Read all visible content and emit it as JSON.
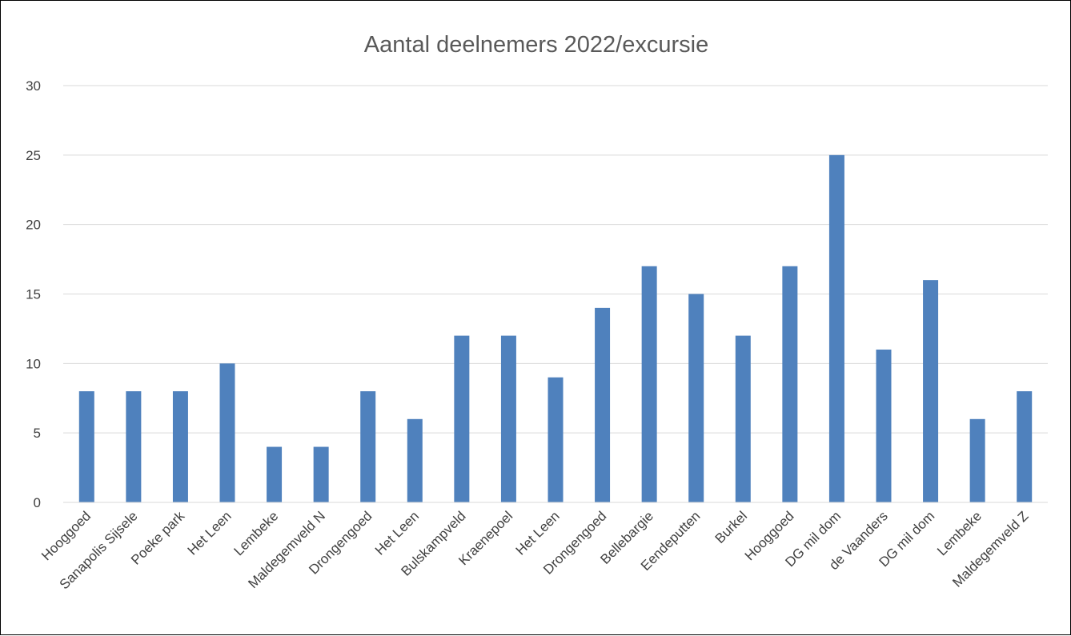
{
  "chart_data": {
    "type": "bar",
    "title": "Aantal deelnemers 2022/excursie",
    "xlabel": "",
    "ylabel": "",
    "ylim": [
      0,
      30
    ],
    "yticks": [
      "0",
      "5",
      "10",
      "15",
      "20",
      "25",
      "30"
    ],
    "grid": true,
    "legend": "none",
    "bar_color": "#4F81BD",
    "categories": [
      "Hooggoed",
      "Sanapolis Sijsele",
      "Poeke park",
      "Het Leen",
      "Lembeke",
      "Maldegemveld N",
      "Drongengoed",
      "Het Leen",
      "Bulskampveld",
      "Kraenepoel",
      "Het Leen",
      "Drongengoed",
      "Bellebargie",
      "Eendeputten",
      "Burkel",
      "Hooggoed",
      "DG mil dom",
      "de Vaanders",
      "DG mil dom",
      "Lembeke",
      "Maldegemveld Z"
    ],
    "values": [
      8,
      8,
      8,
      10,
      4,
      4,
      8,
      6,
      12,
      12,
      9,
      14,
      17,
      15,
      12,
      17,
      25,
      11,
      16,
      6,
      8
    ]
  }
}
